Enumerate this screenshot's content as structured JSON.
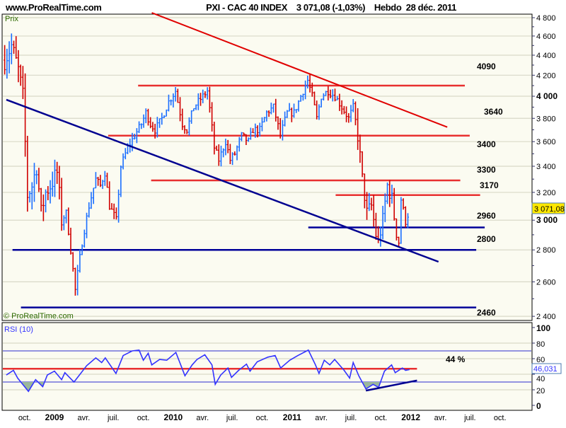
{
  "header": {
    "site": "www.ProRealTime.com",
    "title": "PXI - CAC 40 INDEX    3 071,08 (-1,03%)    Hebdo  28 déc. 2011"
  },
  "price_panel": {
    "label": "Prix",
    "watermark": "© ProRealTime.com",
    "current_value": "3 071,08"
  },
  "rsi_panel": {
    "label": "RSI (10)",
    "current_value": "46,031",
    "annotation": "44 %"
  },
  "colors": {
    "up": "#1a6eff",
    "down": "#d00000",
    "resistance": "#e83030",
    "support": "#000099",
    "rsi": "#3333ff",
    "background": "#fbfbf1",
    "current_price_bg": "#ffe800"
  },
  "chart_data": [
    {
      "type": "ohlc",
      "title": "PXI - CAC 40 INDEX",
      "timeframe": "Hebdo",
      "y_scale": "log",
      "ylim": [
        2400,
        4800
      ],
      "y_ticks": [
        {
          "v": 4800,
          "t": "4 800"
        },
        {
          "v": 4600,
          "t": "4 600"
        },
        {
          "v": 4400,
          "t": "4 400"
        },
        {
          "v": 4200,
          "t": "4 200"
        },
        {
          "v": 4000,
          "t": "4 000",
          "bold": true
        },
        {
          "v": 3800,
          "t": "3 800"
        },
        {
          "v": 3600,
          "t": "3 600"
        },
        {
          "v": 3400,
          "t": "3 400"
        },
        {
          "v": 3200,
          "t": "3 200"
        },
        {
          "v": 3000,
          "t": "3 000",
          "bold": true
        },
        {
          "v": 2800,
          "t": "2 800"
        },
        {
          "v": 2600,
          "t": "2 600"
        },
        {
          "v": 2400,
          "t": "2 400"
        }
      ],
      "x_ticks": [
        {
          "d": "2008-10-01",
          "t": "oct."
        },
        {
          "d": "2009-01-01",
          "t": "2009",
          "bold": true
        },
        {
          "d": "2009-04-01",
          "t": "avr."
        },
        {
          "d": "2009-07-01",
          "t": "juil."
        },
        {
          "d": "2009-10-01",
          "t": "oct."
        },
        {
          "d": "2010-01-01",
          "t": "2010",
          "bold": true
        },
        {
          "d": "2010-04-01",
          "t": "avr."
        },
        {
          "d": "2010-07-01",
          "t": "juil."
        },
        {
          "d": "2010-10-01",
          "t": "oct."
        },
        {
          "d": "2011-01-01",
          "t": "2011",
          "bold": true
        },
        {
          "d": "2011-04-01",
          "t": "avr."
        },
        {
          "d": "2011-07-01",
          "t": "juil."
        },
        {
          "d": "2011-10-01",
          "t": "oct."
        },
        {
          "d": "2012-01-01",
          "t": "2012",
          "bold": true
        },
        {
          "d": "2012-04-01",
          "t": "avr."
        },
        {
          "d": "2012-07-01",
          "t": "juil."
        },
        {
          "d": "2012-10-01",
          "t": "oct."
        }
      ],
      "approx_close_path": [
        [
          "2008-08-01",
          4350
        ],
        [
          "2008-08-22",
          4500
        ],
        [
          "2008-09-12",
          4250
        ],
        [
          "2008-09-26",
          4000
        ],
        [
          "2008-10-10",
          3180
        ],
        [
          "2008-10-24",
          3250
        ],
        [
          "2008-11-07",
          3400
        ],
        [
          "2008-11-21",
          3050
        ],
        [
          "2008-12-05",
          3200
        ],
        [
          "2008-12-19",
          3250
        ],
        [
          "2009-01-09",
          3350
        ],
        [
          "2009-01-23",
          3000
        ],
        [
          "2009-02-06",
          3050
        ],
        [
          "2009-02-20",
          2800
        ],
        [
          "2009-03-06",
          2550
        ],
        [
          "2009-03-13",
          2650
        ],
        [
          "2009-03-27",
          2850
        ],
        [
          "2009-04-17",
          3100
        ],
        [
          "2009-05-08",
          3300
        ],
        [
          "2009-05-22",
          3250
        ],
        [
          "2009-06-05",
          3350
        ],
        [
          "2009-06-19",
          3100
        ],
        [
          "2009-07-10",
          3000
        ],
        [
          "2009-07-24",
          3400
        ],
        [
          "2009-08-14",
          3550
        ],
        [
          "2009-09-04",
          3650
        ],
        [
          "2009-09-25",
          3750
        ],
        [
          "2009-10-09",
          3850
        ],
        [
          "2009-10-23",
          3750
        ],
        [
          "2009-11-06",
          3700
        ],
        [
          "2009-11-27",
          3800
        ],
        [
          "2009-12-18",
          3950
        ],
        [
          "2010-01-08",
          4050
        ],
        [
          "2010-01-29",
          3750
        ],
        [
          "2010-02-12",
          3700
        ],
        [
          "2010-03-05",
          3900
        ],
        [
          "2010-04-02",
          4000
        ],
        [
          "2010-04-16",
          4050
        ],
        [
          "2010-05-07",
          3550
        ],
        [
          "2010-05-21",
          3450
        ],
        [
          "2010-06-11",
          3600
        ],
        [
          "2010-06-25",
          3450
        ],
        [
          "2010-07-09",
          3500
        ],
        [
          "2010-07-30",
          3650
        ],
        [
          "2010-08-20",
          3600
        ],
        [
          "2010-09-03",
          3700
        ],
        [
          "2010-09-24",
          3700
        ],
        [
          "2010-10-15",
          3850
        ],
        [
          "2010-11-05",
          3900
        ],
        [
          "2010-11-26",
          3650
        ],
        [
          "2010-12-17",
          3850
        ],
        [
          "2011-01-07",
          3850
        ],
        [
          "2011-01-28",
          4000
        ],
        [
          "2011-02-18",
          4150
        ],
        [
          "2011-03-04",
          4000
        ],
        [
          "2011-03-18",
          3800
        ],
        [
          "2011-04-01",
          4000
        ],
        [
          "2011-04-22",
          4050
        ],
        [
          "2011-05-13",
          4000
        ],
        [
          "2011-06-03",
          3900
        ],
        [
          "2011-06-24",
          3800
        ],
        [
          "2011-07-08",
          3900
        ],
        [
          "2011-07-22",
          3650
        ],
        [
          "2011-08-05",
          3300
        ],
        [
          "2011-08-19",
          3050
        ],
        [
          "2011-09-02",
          3100
        ],
        [
          "2011-09-16",
          2900
        ],
        [
          "2011-09-23",
          2850
        ],
        [
          "2011-10-07",
          3000
        ],
        [
          "2011-10-21",
          3250
        ],
        [
          "2011-11-04",
          3150
        ],
        [
          "2011-11-18",
          2900
        ],
        [
          "2011-11-25",
          2850
        ],
        [
          "2011-12-02",
          3150
        ],
        [
          "2011-12-16",
          2990
        ],
        [
          "2011-12-28",
          3071.08
        ]
      ],
      "last_close": 3071.08,
      "change_pct": -1.03,
      "horizontal_levels": [
        {
          "label": "4090",
          "price": 4100,
          "kind": "resistance",
          "from": "2009-09-15",
          "to": "2012-06-15"
        },
        {
          "label": "3640",
          "price": 3650,
          "kind": "resistance",
          "from": "2009-06-15",
          "to": "2012-06-30"
        },
        {
          "label": "3300",
          "price": 3290,
          "kind": "resistance",
          "from": "2009-10-25",
          "to": "2012-06-01"
        },
        {
          "label": "3170",
          "price": 3180,
          "kind": "resistance",
          "from": "2011-05-15",
          "to": "2012-08-01"
        },
        {
          "label": "2960",
          "price": 2950,
          "kind": "support",
          "from": "2011-02-20",
          "to": "2012-08-15"
        },
        {
          "label": "2800",
          "price": 2800,
          "kind": "support",
          "from": "2008-08-25",
          "to": "2012-07-20"
        },
        {
          "label": "2460",
          "price": 2450,
          "kind": "support",
          "from": "2008-09-20",
          "to": "2012-07-20"
        }
      ],
      "trendlines": [
        {
          "kind": "resistance",
          "from": [
            "2009-10-27",
            4855
          ],
          "to": [
            "2012-04-22",
            3723
          ]
        },
        {
          "kind": "support",
          "from": [
            "2008-08-06",
            3968
          ],
          "to": [
            "2012-03-26",
            2724
          ]
        }
      ]
    },
    {
      "type": "line",
      "title": "RSI (10)",
      "ylim": [
        0,
        100
      ],
      "y_ticks": [
        {
          "v": 100,
          "t": "100",
          "bold": true
        },
        {
          "v": 80,
          "t": "80"
        },
        {
          "v": 60,
          "t": "60"
        },
        {
          "v": 40,
          "t": "40"
        },
        {
          "v": 20,
          "t": "20"
        },
        {
          "v": 0,
          "t": "0",
          "bold": true
        }
      ],
      "reference_lines": [
        70,
        30
      ],
      "red_level": 47,
      "trendline": {
        "from": [
          "2011-08-16",
          19
        ],
        "to": [
          "2012-01-20",
          32
        ]
      },
      "values": [
        [
          "2008-08-06",
          39
        ],
        [
          "2008-08-28",
          45
        ],
        [
          "2008-09-10",
          35
        ],
        [
          "2008-10-13",
          18
        ],
        [
          "2008-11-04",
          33
        ],
        [
          "2008-11-26",
          24
        ],
        [
          "2008-12-10",
          39
        ],
        [
          "2009-01-01",
          44
        ],
        [
          "2009-01-23",
          33
        ],
        [
          "2009-02-02",
          42
        ],
        [
          "2009-03-02",
          30
        ],
        [
          "2009-04-10",
          51
        ],
        [
          "2009-05-08",
          61
        ],
        [
          "2009-05-26",
          55
        ],
        [
          "2009-06-06",
          61
        ],
        [
          "2009-07-09",
          41
        ],
        [
          "2009-07-31",
          64
        ],
        [
          "2009-08-28",
          70
        ],
        [
          "2009-09-18",
          71
        ],
        [
          "2009-10-01",
          58
        ],
        [
          "2009-10-16",
          67
        ],
        [
          "2009-10-27",
          52
        ],
        [
          "2009-11-20",
          59
        ],
        [
          "2009-12-12",
          58
        ],
        [
          "2010-01-09",
          68
        ],
        [
          "2010-02-06",
          38
        ],
        [
          "2010-02-28",
          52
        ],
        [
          "2010-03-15",
          59
        ],
        [
          "2010-04-08",
          65
        ],
        [
          "2010-04-30",
          52
        ],
        [
          "2010-05-10",
          27
        ],
        [
          "2010-05-27",
          39
        ],
        [
          "2010-06-18",
          48
        ],
        [
          "2010-06-29",
          36
        ],
        [
          "2010-07-21",
          45
        ],
        [
          "2010-08-14",
          53
        ],
        [
          "2010-08-25",
          44
        ],
        [
          "2010-09-16",
          56
        ],
        [
          "2010-10-19",
          62
        ],
        [
          "2010-11-10",
          64
        ],
        [
          "2010-11-27",
          48
        ],
        [
          "2010-12-25",
          58
        ],
        [
          "2011-01-19",
          64
        ],
        [
          "2011-02-20",
          71
        ],
        [
          "2011-03-14",
          52
        ],
        [
          "2011-03-25",
          41
        ],
        [
          "2011-04-10",
          58
        ],
        [
          "2011-04-27",
          52
        ],
        [
          "2011-05-12",
          59
        ],
        [
          "2011-06-10",
          45
        ],
        [
          "2011-06-27",
          35
        ],
        [
          "2011-07-08",
          55
        ],
        [
          "2011-07-25",
          38
        ],
        [
          "2011-08-16",
          21
        ],
        [
          "2011-09-07",
          27
        ],
        [
          "2011-09-24",
          23
        ],
        [
          "2011-10-12",
          44
        ],
        [
          "2011-11-03",
          52
        ],
        [
          "2011-11-14",
          42
        ],
        [
          "2011-12-06",
          48
        ],
        [
          "2011-12-16",
          45
        ],
        [
          "2011-12-28",
          46.031
        ]
      ]
    }
  ]
}
